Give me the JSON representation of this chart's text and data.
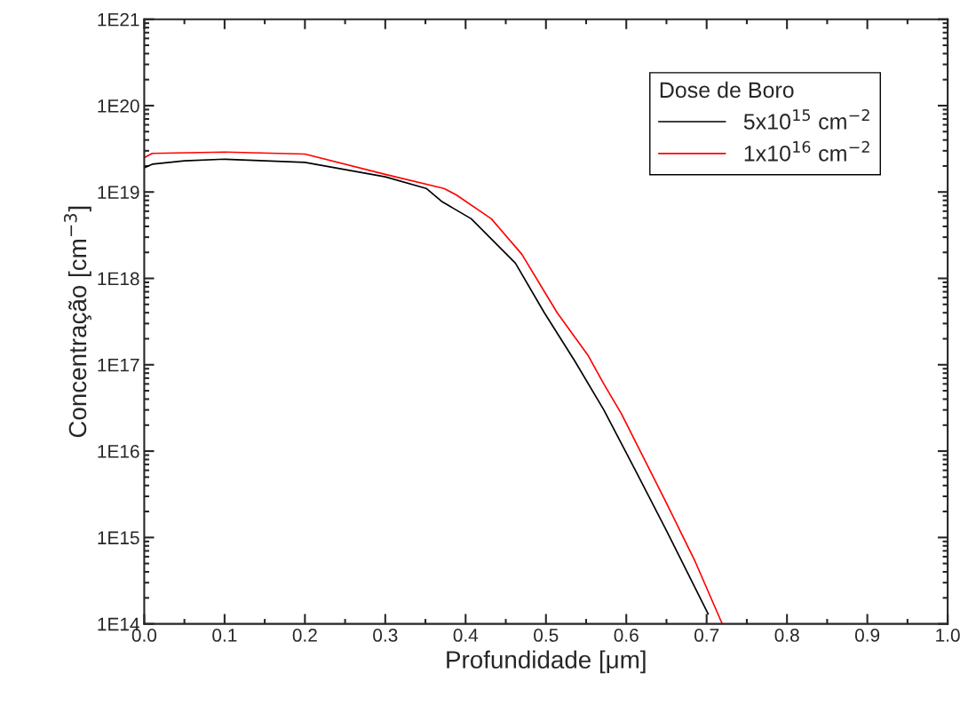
{
  "chart_data": {
    "type": "line",
    "xlabel": "Profundidade [μm]",
    "ylabel": "Concentração [cm$^{−3}$]",
    "legend_title": "Dose de Boro",
    "legend": "top right",
    "log": "y",
    "grid": false,
    "xlim": [
      0.0,
      1.0
    ],
    "xticks": [
      {
        "value": 0.0,
        "label": "0.0"
      },
      0.1,
      0.2,
      0.3,
      0.4,
      0.5,
      0.6,
      0.7,
      0.8,
      0.9,
      {
        "value": 1.0,
        "label": "1.0"
      }
    ],
    "ylim": [
      100000000000000.0,
      1e+21
    ],
    "yticks": [
      {
        "value": 100000000000000.0,
        "label": "1E14"
      },
      {
        "value": 1000000000000000.0,
        "label": "1E15"
      },
      {
        "value": 1e+16,
        "label": "1E16"
      },
      {
        "value": 1e+17,
        "label": "1E17"
      },
      {
        "value": 1e+18,
        "label": "1E18"
      },
      {
        "value": 1e+19,
        "label": "1E19"
      },
      {
        "value": 1e+20,
        "label": "1E20"
      },
      {
        "value": 1e+21,
        "label": "1E21"
      }
    ],
    "series": [
      {
        "name": "5x10$^{15}$ cm$^{−2}$",
        "color": "#000000",
        "x": [
          0.0,
          0.01,
          0.05,
          0.1,
          0.2,
          0.3,
          0.351,
          0.37,
          0.407,
          0.462,
          0.498,
          0.536,
          0.572,
          0.613,
          0.65,
          0.702
        ],
        "values": [
          1.9e+19,
          2.1e+19,
          2.3e+19,
          2.4e+19,
          2.2e+19,
          1.5e+19,
          1.1e+19,
          7.8e+18,
          4.9e+18,
          1.5e+18,
          4e+17,
          1.1e+17,
          3e+16,
          5600000000000000.0,
          1200000000000000.0,
          130000000000000.0
        ]
      },
      {
        "name": "1x10$^{16}$ cm$^{−2}$",
        "color": "#ff0000",
        "x": [
          0.0,
          0.01,
          0.1,
          0.2,
          0.3,
          0.373,
          0.388,
          0.432,
          0.47,
          0.514,
          0.552,
          0.572,
          0.594,
          0.65,
          0.686,
          0.719
        ],
        "values": [
          2.5e+19,
          2.8e+19,
          2.9e+19,
          2.75e+19,
          1.6e+19,
          1.1e+19,
          9.3e+18,
          4.9e+18,
          1.9e+18,
          4e+17,
          1.3e+17,
          6e+16,
          2.7e+16,
          2500000000000000.0,
          520000000000000.0,
          102000000000000.0
        ]
      }
    ]
  }
}
